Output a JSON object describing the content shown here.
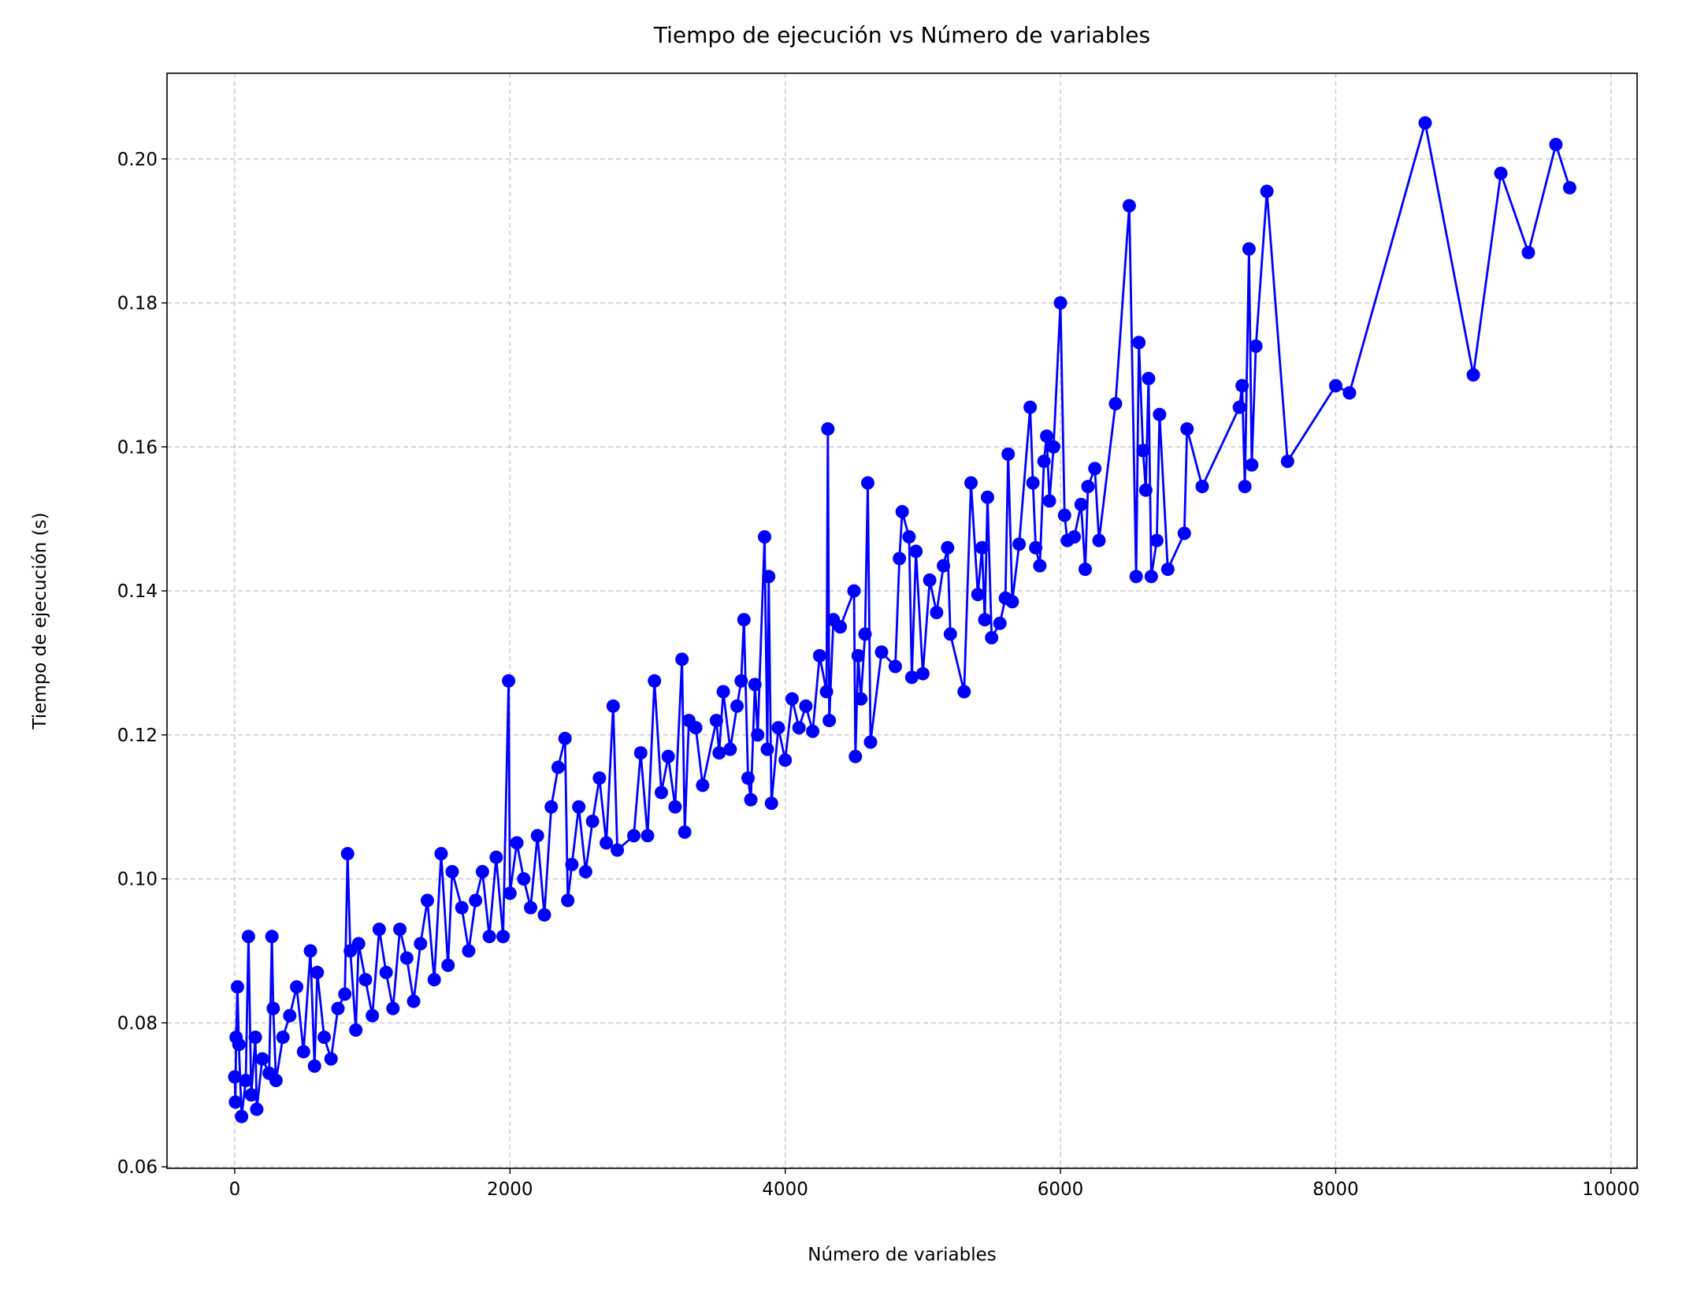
{
  "chart_data": {
    "type": "line",
    "title": "Tiempo de ejecución vs Número de variables",
    "xlabel": "Número de variables",
    "ylabel": "Tiempo de ejecución (s)",
    "color": "#0000ff",
    "marker": "o",
    "grid": true,
    "xlim": [
      -492,
      10190
    ],
    "ylim": [
      0.0598,
      0.2119
    ],
    "xticks": [
      0,
      2000,
      4000,
      6000,
      8000,
      10000
    ],
    "yticks": [
      0.06,
      0.08,
      {
        "value": 0.1,
        "label": "0.10"
      },
      0.12,
      0.14,
      0.16,
      0.18,
      {
        "value": 0.2,
        "label": "0.20"
      }
    ],
    "x": [
      0,
      5,
      10,
      20,
      30,
      50,
      80,
      100,
      120,
      150,
      160,
      200,
      250,
      270,
      280,
      300,
      350,
      400,
      450,
      500,
      550,
      580,
      600,
      650,
      700,
      750,
      800,
      820,
      840,
      880,
      900,
      950,
      1000,
      1050,
      1100,
      1150,
      1200,
      1250,
      1300,
      1350,
      1400,
      1450,
      1500,
      1550,
      1580,
      1650,
      1700,
      1750,
      1800,
      1850,
      1900,
      1950,
      1990,
      2000,
      2050,
      2100,
      2150,
      2200,
      2250,
      2300,
      2350,
      2400,
      2420,
      2450,
      2500,
      2550,
      2600,
      2650,
      2700,
      2750,
      2780,
      2900,
      2950,
      3000,
      3050,
      3100,
      3150,
      3200,
      3250,
      3270,
      3300,
      3350,
      3400,
      3500,
      3520,
      3550,
      3600,
      3650,
      3680,
      3700,
      3730,
      3750,
      3780,
      3800,
      3850,
      3870,
      3880,
      3900,
      3950,
      4000,
      4050,
      4100,
      4150,
      4200,
      4250,
      4300,
      4310,
      4320,
      4350,
      4400,
      4500,
      4510,
      4530,
      4550,
      4580,
      4600,
      4620,
      4700,
      4800,
      4830,
      4850,
      4900,
      4920,
      4950,
      5000,
      5050,
      5100,
      5150,
      5180,
      5200,
      5300,
      5350,
      5400,
      5430,
      5450,
      5470,
      5500,
      5560,
      5600,
      5620,
      5650,
      5700,
      5780,
      5800,
      5820,
      5850,
      5880,
      5900,
      5920,
      5950,
      6000,
      6030,
      6050,
      6100,
      6150,
      6180,
      6200,
      6250,
      6280,
      6400,
      6500,
      6550,
      6570,
      6600,
      6620,
      6640,
      6660,
      6700,
      6720,
      6780,
      6900,
      6920,
      7030,
      7300,
      7320,
      7340,
      7370,
      7390,
      7420,
      7500,
      7650,
      8000,
      8100,
      8650,
      9000,
      9200,
      9400,
      9600,
      9700
    ],
    "values": [
      0.0725,
      0.069,
      0.078,
      0.085,
      0.077,
      0.067,
      0.072,
      0.092,
      0.07,
      0.078,
      0.068,
      0.075,
      0.073,
      0.092,
      0.082,
      0.072,
      0.078,
      0.081,
      0.085,
      0.076,
      0.09,
      0.074,
      0.087,
      0.078,
      0.075,
      0.082,
      0.084,
      0.1035,
      0.09,
      0.079,
      0.091,
      0.086,
      0.081,
      0.093,
      0.087,
      0.082,
      0.093,
      0.089,
      0.083,
      0.091,
      0.097,
      0.086,
      0.1035,
      0.088,
      0.101,
      0.096,
      0.09,
      0.097,
      0.101,
      0.092,
      0.103,
      0.092,
      0.1275,
      0.098,
      0.105,
      0.1,
      0.096,
      0.106,
      0.095,
      0.11,
      0.1155,
      0.1195,
      0.097,
      0.102,
      0.11,
      0.101,
      0.108,
      0.114,
      0.105,
      0.124,
      0.104,
      0.106,
      0.1175,
      0.106,
      0.1275,
      0.112,
      0.117,
      0.11,
      0.1305,
      0.1065,
      0.122,
      0.121,
      0.113,
      0.122,
      0.1175,
      0.126,
      0.118,
      0.124,
      0.1275,
      0.136,
      0.114,
      0.111,
      0.127,
      0.12,
      0.1475,
      0.118,
      0.142,
      0.1105,
      0.121,
      0.1165,
      0.125,
      0.121,
      0.124,
      0.1205,
      0.131,
      0.126,
      0.1625,
      0.122,
      0.136,
      0.135,
      0.14,
      0.117,
      0.131,
      0.125,
      0.134,
      0.155,
      0.119,
      0.1315,
      0.1295,
      0.1445,
      0.151,
      0.1475,
      0.128,
      0.1455,
      0.1285,
      0.1415,
      0.137,
      0.1435,
      0.146,
      0.134,
      0.126,
      0.155,
      0.1395,
      0.146,
      0.136,
      0.153,
      0.1335,
      0.1355,
      0.139,
      0.159,
      0.1385,
      0.1465,
      0.1655,
      0.155,
      0.146,
      0.1435,
      0.158,
      0.1615,
      0.1525,
      0.16,
      0.18,
      0.1505,
      0.147,
      0.1475,
      0.152,
      0.143,
      0.1545,
      0.157,
      0.147,
      0.166,
      0.1935,
      0.142,
      0.1745,
      0.1595,
      0.154,
      0.1695,
      0.142,
      0.147,
      0.1645,
      0.143,
      0.148,
      0.1625,
      0.1545,
      0.1655,
      0.1685,
      0.1545,
      0.1875,
      0.1575,
      0.174,
      0.1955,
      0.158,
      0.1685,
      0.1675,
      0.205,
      0.17,
      0.198,
      0.187,
      0.202,
      0.196
    ]
  }
}
